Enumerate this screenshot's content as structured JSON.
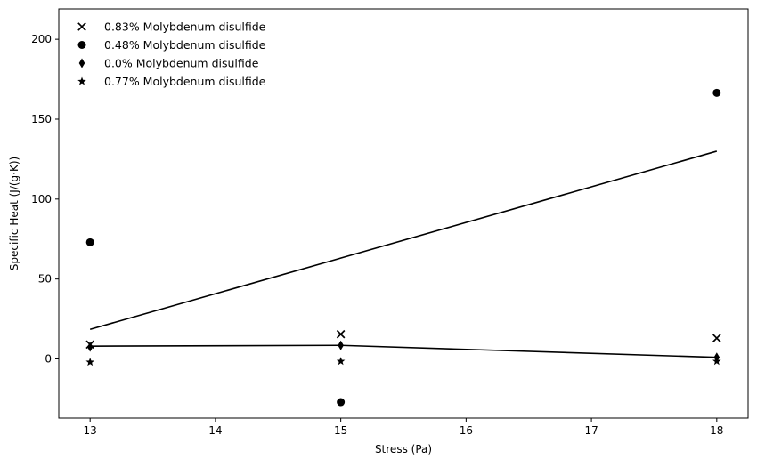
{
  "chart_data": {
    "type": "scatter",
    "title": "",
    "xlabel": "Stress (Pa)",
    "ylabel": "Specific Heat (J/(g·K))",
    "xlim": [
      12.75,
      18.25
    ],
    "ylim": [
      -37,
      219
    ],
    "xticks": [
      13,
      14,
      15,
      16,
      17,
      18
    ],
    "yticks": [
      0,
      50,
      100,
      150,
      200
    ],
    "grid": false,
    "legend": "top-left",
    "series": [
      {
        "name": "0.83% Molybdenum disulfide",
        "marker": "x",
        "x": [
          13,
          15,
          18
        ],
        "y": [
          9,
          15.5,
          13
        ]
      },
      {
        "name": "0.48% Molybdenum disulfide",
        "marker": "circle",
        "x": [
          13,
          15,
          18
        ],
        "y": [
          73,
          -27,
          166.5
        ]
      },
      {
        "name": "0.0% Molybdenum disulfide",
        "marker": "thin-diamond",
        "x": [
          13,
          15,
          18
        ],
        "y": [
          7.5,
          8.5,
          1
        ]
      },
      {
        "name": "0.77% Molybdenum disulfide",
        "marker": "star",
        "x": [
          13,
          15,
          18
        ],
        "y": [
          -2,
          -1.5,
          -1.5
        ]
      }
    ],
    "lines": [
      {
        "x": [
          13,
          18
        ],
        "y": [
          18.5,
          130
        ]
      },
      {
        "x": [
          13,
          15,
          18
        ],
        "y": [
          8,
          8.5,
          1
        ]
      }
    ]
  }
}
